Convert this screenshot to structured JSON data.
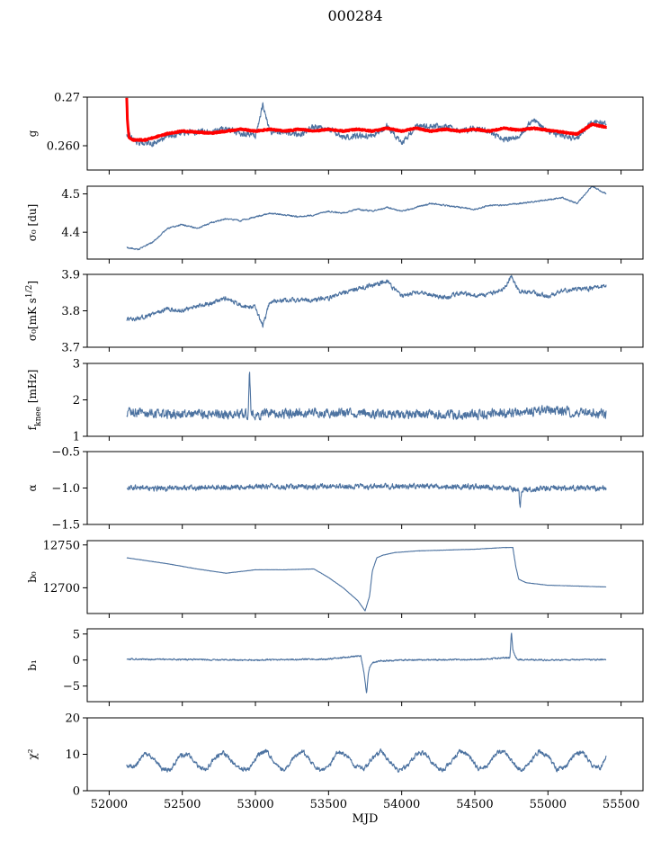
{
  "suptitle": "000284",
  "colors": {
    "series": "#4c72a0",
    "model": "#ff0000",
    "axis": "#000000"
  },
  "chart_data": [
    {
      "type": "line",
      "ylabel": "g",
      "ylim": [
        0.255,
        0.27
      ],
      "yticks": [
        0.26,
        0.27
      ],
      "ytick_labels": [
        "0.260",
        "0.27"
      ],
      "series": [
        {
          "style": "noisy",
          "x": [
            52120,
            52200,
            52300,
            52400,
            52500,
            52600,
            52700,
            52800,
            52900,
            53000,
            53050,
            53100,
            53200,
            53300,
            53400,
            53500,
            53600,
            53700,
            53800,
            53900,
            54000,
            54100,
            54200,
            54300,
            54400,
            54500,
            54600,
            54700,
            54800,
            54900,
            55000,
            55100,
            55200,
            55300,
            55400
          ],
          "y": [
            0.2625,
            0.2605,
            0.2605,
            0.2618,
            0.2628,
            0.2628,
            0.2628,
            0.2635,
            0.2625,
            0.262,
            0.2685,
            0.2628,
            0.2628,
            0.2622,
            0.264,
            0.2635,
            0.2618,
            0.262,
            0.262,
            0.264,
            0.2605,
            0.264,
            0.264,
            0.264,
            0.263,
            0.2635,
            0.263,
            0.2612,
            0.262,
            0.2655,
            0.263,
            0.262,
            0.2615,
            0.265,
            0.2645
          ],
          "noise": 0.0009
        },
        {
          "style": "model",
          "x": [
            52120,
            52125,
            52135,
            52160,
            52250,
            52400,
            52500,
            52600,
            52700,
            52800,
            52900,
            53000,
            53100,
            53200,
            53300,
            53400,
            53500,
            53600,
            53700,
            53800,
            53900,
            54000,
            54100,
            54200,
            54300,
            54400,
            54500,
            54600,
            54700,
            54800,
            54900,
            55000,
            55100,
            55200,
            55300,
            55400
          ],
          "y": [
            0.27,
            0.265,
            0.2618,
            0.2612,
            0.2612,
            0.2625,
            0.263,
            0.2628,
            0.2626,
            0.263,
            0.2634,
            0.263,
            0.2634,
            0.263,
            0.2634,
            0.263,
            0.2634,
            0.263,
            0.2634,
            0.263,
            0.2636,
            0.263,
            0.2636,
            0.263,
            0.2634,
            0.263,
            0.2634,
            0.263,
            0.2636,
            0.2632,
            0.2636,
            0.2632,
            0.2628,
            0.2624,
            0.2644,
            0.2638
          ],
          "noise": 0.00015
        }
      ]
    },
    {
      "type": "line",
      "ylabel": "σ₀ [du]",
      "ylim": [
        4.33,
        4.52
      ],
      "yticks": [
        4.4,
        4.5
      ],
      "ytick_labels": [
        "4.4",
        "4.5"
      ],
      "series": [
        {
          "style": "noisy",
          "x": [
            52120,
            52200,
            52300,
            52400,
            52500,
            52600,
            52700,
            52800,
            52900,
            53000,
            53100,
            53200,
            53300,
            53400,
            53500,
            53600,
            53700,
            53800,
            53900,
            54000,
            54100,
            54200,
            54300,
            54400,
            54500,
            54600,
            54700,
            54800,
            54900,
            55000,
            55100,
            55200,
            55300,
            55400
          ],
          "y": [
            4.36,
            4.355,
            4.375,
            4.41,
            4.42,
            4.41,
            4.425,
            4.435,
            4.43,
            4.44,
            4.45,
            4.445,
            4.44,
            4.445,
            4.455,
            4.45,
            4.46,
            4.455,
            4.465,
            4.455,
            4.465,
            4.475,
            4.47,
            4.465,
            4.46,
            4.47,
            4.47,
            4.475,
            4.48,
            4.485,
            4.49,
            4.475,
            4.52,
            4.5
          ],
          "noise": 0.003
        }
      ]
    },
    {
      "type": "line",
      "ylabel": "σ₀[mK s^1/2]",
      "ylim": [
        3.7,
        3.9
      ],
      "yticks": [
        3.7,
        3.8,
        3.9
      ],
      "ytick_labels": [
        "3.7",
        "3.8",
        "3.9"
      ],
      "series": [
        {
          "style": "noisy",
          "x": [
            52120,
            52200,
            52300,
            52400,
            52500,
            52600,
            52700,
            52800,
            52900,
            53000,
            53050,
            53100,
            53200,
            53300,
            53400,
            53500,
            53600,
            53700,
            53800,
            53900,
            54000,
            54100,
            54200,
            54300,
            54400,
            54500,
            54600,
            54700,
            54750,
            54800,
            54900,
            55000,
            55100,
            55200,
            55300,
            55400
          ],
          "y": [
            3.775,
            3.78,
            3.79,
            3.805,
            3.8,
            3.815,
            3.82,
            3.835,
            3.815,
            3.81,
            3.76,
            3.825,
            3.83,
            3.83,
            3.83,
            3.835,
            3.85,
            3.86,
            3.87,
            3.88,
            3.84,
            3.85,
            3.845,
            3.835,
            3.85,
            3.84,
            3.845,
            3.86,
            3.895,
            3.855,
            3.85,
            3.84,
            3.855,
            3.86,
            3.86,
            3.87
          ],
          "noise": 0.009
        }
      ]
    },
    {
      "type": "line",
      "ylabel": "f_knee [mHz]",
      "ylim": [
        1,
        3
      ],
      "yticks": [
        1,
        2,
        3
      ],
      "ytick_labels": [
        "1",
        "2",
        "3"
      ],
      "series": [
        {
          "style": "noisy",
          "x": [
            52120,
            52500,
            52950,
            52960,
            52970,
            53500,
            54000,
            54500,
            54800,
            55000,
            55300,
            55400
          ],
          "y": [
            1.65,
            1.6,
            1.6,
            2.9,
            1.6,
            1.65,
            1.6,
            1.6,
            1.65,
            1.7,
            1.65,
            1.6
          ],
          "noise": 0.19
        }
      ]
    },
    {
      "type": "line",
      "ylabel": "α",
      "ylim": [
        -1.5,
        -0.5
      ],
      "yticks": [
        -1.5,
        -1.0,
        -0.5
      ],
      "ytick_labels": [
        "−1.5",
        "−1.0",
        "−0.5"
      ],
      "series": [
        {
          "style": "noisy",
          "x": [
            52120,
            52500,
            53000,
            53500,
            54000,
            54500,
            54800,
            54810,
            54820,
            55000,
            55400
          ],
          "y": [
            -1.0,
            -1.0,
            -0.98,
            -0.98,
            -0.98,
            -0.98,
            -1.02,
            -1.28,
            -1.02,
            -1.0,
            -1.0
          ],
          "noise": 0.055
        }
      ]
    },
    {
      "type": "line",
      "ylabel": "b₀",
      "ylim": [
        12670,
        12755
      ],
      "yticks": [
        12700,
        12750
      ],
      "ytick_labels": [
        "12700",
        "12750"
      ],
      "series": [
        {
          "style": "smooth",
          "x": [
            52120,
            52200,
            52400,
            52600,
            52800,
            53000,
            53200,
            53400,
            53500,
            53600,
            53700,
            53750,
            53780,
            53800,
            53830,
            53870,
            53950,
            54100,
            54300,
            54500,
            54700,
            54760,
            54780,
            54800,
            54850,
            55000,
            55200,
            55400
          ],
          "y": [
            12735,
            12733,
            12728,
            12722,
            12717,
            12721,
            12721,
            12722,
            12712,
            12700,
            12685,
            12673,
            12690,
            12720,
            12735,
            12738,
            12741,
            12743,
            12744,
            12745,
            12747,
            12747,
            12725,
            12710,
            12706,
            12703,
            12702,
            12701
          ],
          "noise": 0.15
        }
      ]
    },
    {
      "type": "line",
      "ylabel": "b₁",
      "ylim": [
        -8,
        6
      ],
      "yticks": [
        -5,
        0,
        5
      ],
      "ytick_labels": [
        "−5",
        "0",
        "5"
      ],
      "series": [
        {
          "style": "noisy",
          "x": [
            52120,
            52500,
            53000,
            53500,
            53720,
            53740,
            53760,
            53770,
            53780,
            53800,
            53850,
            54000,
            54500,
            54740,
            54750,
            54760,
            54780,
            54800,
            55000,
            55400
          ],
          "y": [
            0.2,
            0.1,
            0.0,
            0.2,
            0.8,
            -2.0,
            -6.5,
            -3.0,
            -1.5,
            -0.5,
            -0.2,
            0.0,
            0.1,
            0.5,
            5.5,
            2.0,
            0.5,
            0.1,
            0.0,
            0.1
          ],
          "noise": 0.22
        }
      ]
    },
    {
      "type": "line",
      "ylabel": "χ²",
      "ylim": [
        0,
        20
      ],
      "yticks": [
        0,
        10,
        20
      ],
      "ytick_labels": [
        "0",
        "10",
        "20"
      ],
      "xlabel": "MJD",
      "xticks": [
        52000,
        52500,
        53000,
        53500,
        54000,
        54500,
        55000,
        55500
      ],
      "xtick_labels": [
        "52000",
        "52500",
        "53000",
        "53500",
        "54000",
        "54500",
        "55000",
        "55500"
      ],
      "series": [
        {
          "style": "noisy",
          "x": [
            52120,
            52180,
            52240,
            52300,
            52360,
            52420,
            52480,
            52540,
            52600,
            52660,
            52720,
            52780,
            52840,
            52900,
            52960,
            53020,
            53080,
            53140,
            53200,
            53260,
            53320,
            53380,
            53440,
            53500,
            53560,
            53620,
            53680,
            53740,
            53800,
            53860,
            53920,
            53980,
            54040,
            54100,
            54160,
            54220,
            54280,
            54340,
            54400,
            54460,
            54520,
            54580,
            54640,
            54700,
            54760,
            54820,
            54880,
            54940,
            55000,
            55060,
            55120,
            55180,
            55240,
            55300,
            55360,
            55400
          ],
          "y": [
            7,
            6.5,
            10.5,
            9,
            6,
            5.5,
            9.5,
            10,
            7,
            5.5,
            9,
            10.5,
            8,
            6,
            6,
            10,
            11,
            7,
            5.5,
            9,
            11,
            8,
            5.5,
            6.5,
            10.5,
            10,
            6.5,
            6,
            9,
            11,
            8,
            5.5,
            7,
            10,
            10.5,
            7,
            5.5,
            8,
            11,
            9.5,
            6,
            6.5,
            10,
            11,
            7.5,
            5.5,
            8,
            11,
            9.5,
            6,
            6.5,
            10,
            10.5,
            7,
            6,
            10
          ],
          "noise": 0.9
        }
      ]
    }
  ]
}
